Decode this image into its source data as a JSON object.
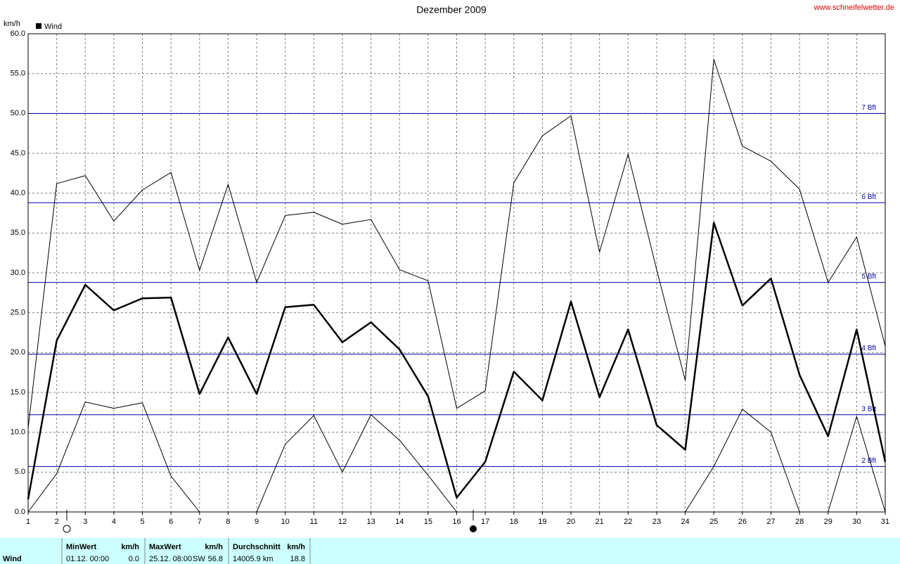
{
  "chart_data": {
    "type": "line",
    "title": "Dezember 2009",
    "source": "www.schneifelwetter.de",
    "y_label": "km/h",
    "x": [
      1,
      2,
      3,
      4,
      5,
      6,
      7,
      8,
      9,
      10,
      11,
      12,
      13,
      14,
      15,
      16,
      17,
      18,
      19,
      20,
      21,
      22,
      23,
      24,
      25,
      26,
      27,
      28,
      29,
      30,
      31
    ],
    "xlim": [
      1,
      31
    ],
    "xticks": [
      1,
      2,
      3,
      4,
      5,
      6,
      7,
      8,
      9,
      10,
      11,
      12,
      13,
      14,
      15,
      16,
      17,
      18,
      19,
      20,
      21,
      22,
      23,
      24,
      25,
      26,
      27,
      28,
      29,
      30,
      31
    ],
    "ylim": [
      0,
      60
    ],
    "yticks": [
      {
        "value": 0,
        "label": "0.0"
      },
      {
        "value": 5,
        "label": "5.0"
      },
      {
        "value": 10,
        "label": "10.0"
      },
      {
        "value": 15,
        "label": "15.0"
      },
      {
        "value": 20,
        "label": "20.0"
      },
      {
        "value": 25,
        "label": "25.0"
      },
      {
        "value": 30,
        "label": "30.0"
      },
      {
        "value": 35,
        "label": "35.0"
      },
      {
        "value": 40,
        "label": "40.0"
      },
      {
        "value": 45,
        "label": "45.0"
      },
      {
        "value": 50,
        "label": "50.0"
      },
      {
        "value": 55,
        "label": "55.0"
      },
      {
        "value": 60,
        "label": "60.0"
      }
    ],
    "grid": true,
    "series": [
      {
        "color": "#000000",
        "width": 1,
        "values": [
          10.5,
          41.2,
          42.2,
          36.5,
          40.4,
          42.6,
          30.3,
          41.1,
          28.8,
          37.2,
          37.6,
          36.1,
          36.7,
          30.4,
          29.0,
          13.0,
          15.2,
          41.3,
          47.2,
          49.7,
          32.6,
          44.9,
          30.4,
          16.5,
          56.8,
          45.9,
          44.0,
          40.5,
          28.8,
          34.5,
          20.8
        ]
      },
      {
        "name": "Wind",
        "color": "#000000",
        "width": 2.5,
        "values": [
          1.6,
          21.5,
          28.5,
          25.3,
          26.8,
          26.9,
          14.8,
          21.9,
          14.8,
          25.7,
          26.0,
          21.3,
          23.8,
          20.4,
          14.5,
          1.8,
          6.3,
          17.6,
          14.0,
          26.4,
          14.4,
          22.9,
          10.9,
          7.8,
          36.3,
          25.9,
          29.3,
          17.2,
          9.5,
          22.9,
          6.3
        ]
      },
      {
        "color": "#000000",
        "width": 1,
        "values": [
          0,
          4.8,
          13.8,
          13.0,
          13.7,
          4.5,
          0,
          0,
          0,
          8.5,
          12.1,
          5.0,
          12.2,
          9.0,
          4.6,
          0,
          0,
          0,
          0,
          0,
          0,
          0,
          0,
          0,
          5.7,
          12.9,
          10.0,
          0,
          0,
          12.0,
          0
        ]
      }
    ],
    "reference_lines": [
      {
        "value": 5.7,
        "label": "2 Bft"
      },
      {
        "value": 12.2,
        "label": "3 Bft"
      },
      {
        "value": 19.8,
        "label": "4 Bft"
      },
      {
        "value": 28.8,
        "label": "5 Bft"
      },
      {
        "value": 38.8,
        "label": "6 Bft"
      },
      {
        "value": 50.0,
        "label": "7 Bft"
      }
    ],
    "reference_color": "#0000aa"
  },
  "summary": {
    "row_label": "Wind",
    "min": {
      "title": "MinWert",
      "unit": "km/h",
      "time": "01.12.  00:00",
      "value": "0.0"
    },
    "max": {
      "title": "MaxWert",
      "unit": "km/h",
      "time": "25.12.  08:00",
      "direction": "SW",
      "value": "56.8"
    },
    "avg": {
      "title": "Durchschnitt",
      "unit": "km/h",
      "distance": "14005.9 km",
      "value": "18.8"
    }
  }
}
